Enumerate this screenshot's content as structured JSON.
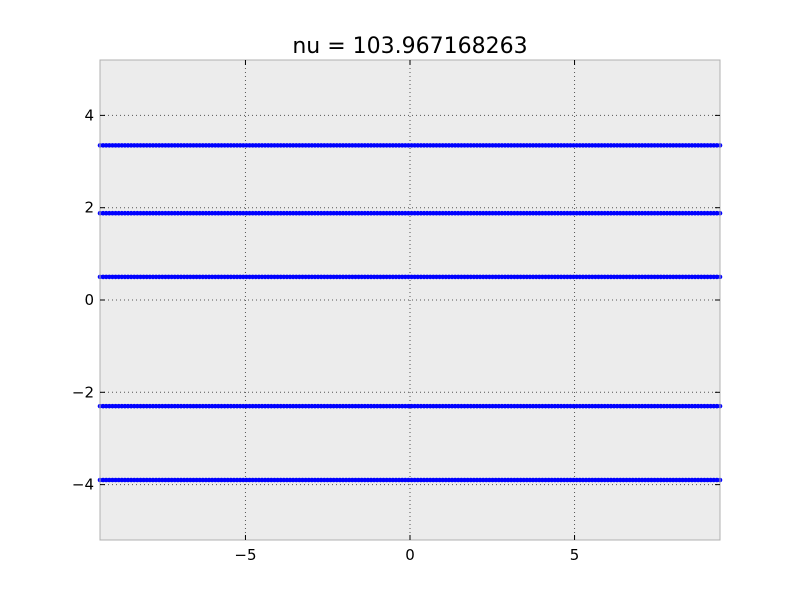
{
  "chart_data": {
    "type": "scatter",
    "title": "nu = 103.967168263",
    "xlabel": "",
    "ylabel": "",
    "xlim": [
      -9.42,
      9.42
    ],
    "ylim": [
      -5.2,
      5.2
    ],
    "x_ticks": [
      -5,
      0,
      5
    ],
    "x_tick_labels": [
      "−5",
      "0",
      "5"
    ],
    "y_ticks": [
      -4,
      -2,
      0,
      2,
      4
    ],
    "y_tick_labels": [
      "−4",
      "−2",
      "0",
      "2",
      "4"
    ],
    "grid": true,
    "legend": "none",
    "series": [
      {
        "color": "#0000ff",
        "x_start": -9.42,
        "x_end": 9.42,
        "point_count": 200,
        "y_levels": [
          3.35,
          1.88,
          0.5,
          -2.3,
          -3.9
        ]
      }
    ]
  },
  "colors": {
    "axes_background": "#ececec",
    "spine": "#b0b0b0",
    "grid": "#555555",
    "marker": "#0000ff"
  }
}
